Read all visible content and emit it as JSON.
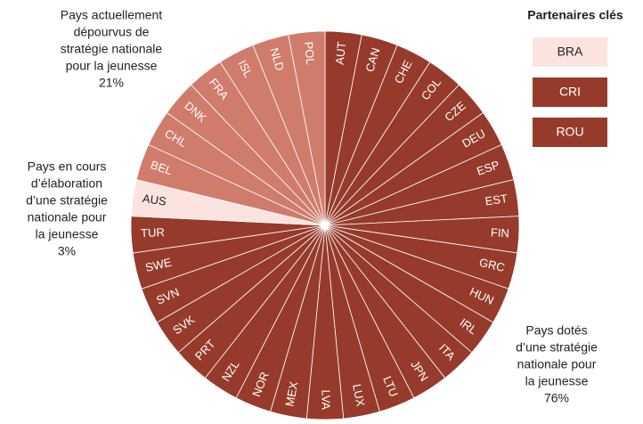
{
  "chart_data": {
    "type": "pie",
    "groups": [
      {
        "label_lines": [
          "Pays dotés",
          "d’une stratégie",
          "nationale pour",
          "la jeunesse"
        ],
        "value": 76,
        "value_label": "76%",
        "color": "#963b2b",
        "categories": [
          "AUT",
          "CAN",
          "CHE",
          "COL",
          "CZE",
          "DEU",
          "ESP",
          "EST",
          "FIN",
          "GRC",
          "HUN",
          "IRL",
          "ITA",
          "JPN",
          "LTU",
          "LUX",
          "LVA",
          "MEX",
          "NOR",
          "NZL",
          "PRT",
          "SVK",
          "SVN",
          "SWE",
          "TUR"
        ],
        "values": [
          1,
          1,
          1,
          1,
          1,
          1,
          1,
          1,
          1,
          1,
          1,
          1,
          1,
          1,
          1,
          1,
          1,
          1,
          1,
          1,
          1,
          1,
          1,
          1,
          1
        ]
      },
      {
        "label_lines": [
          "Pays en cours",
          "d’élaboration",
          "d’une stratégie",
          "nationale pour",
          "la jeunesse"
        ],
        "value": 3,
        "value_label": "3%",
        "color": "#fbe3df",
        "categories": [
          "AUS"
        ],
        "values": [
          1
        ]
      },
      {
        "label_lines": [
          "Pays actuellement",
          "dépourvus de",
          "stratégie nationale",
          "pour la jeunesse"
        ],
        "value": 21,
        "value_label": "21%",
        "color": "#d07c6c",
        "categories": [
          "BEL",
          "CHL",
          "DNK",
          "FRA",
          "ISL",
          "NLD",
          "POL"
        ],
        "values": [
          1,
          1,
          1,
          1,
          1,
          1,
          1
        ]
      }
    ],
    "legend": {
      "title": "Partenaires clés",
      "items": [
        {
          "name": "BRA",
          "color": "#fbe3df"
        },
        {
          "name": "CRI",
          "color": "#963b2b"
        },
        {
          "name": "ROU",
          "color": "#963b2b"
        }
      ]
    }
  }
}
